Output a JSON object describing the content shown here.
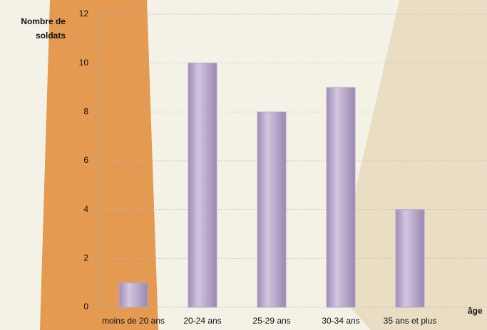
{
  "chart_data": {
    "type": "bar",
    "y_label": "Nombre de soldats",
    "x_label": "âge",
    "categories": [
      "moins de 20 ans",
      "20-24 ans",
      "25-29 ans",
      "30-34 ans",
      "35 ans et plus"
    ],
    "values": [
      1,
      10,
      8,
      9,
      4
    ],
    "color": "#b7a6cb",
    "ylim": [
      0,
      12
    ],
    "yticks": [
      0,
      2,
      4,
      6,
      8,
      10,
      12
    ],
    "grid": true
  }
}
